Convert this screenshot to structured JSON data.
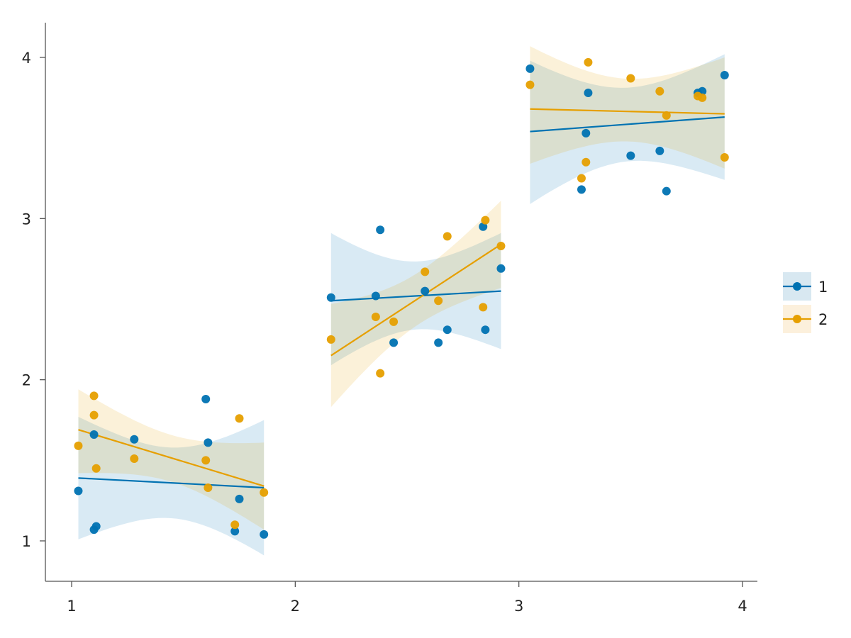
{
  "chart_data": {
    "type": "scatter",
    "title": "",
    "xlabel": "",
    "ylabel": "",
    "xlim": [
      0.88,
      4.07
    ],
    "ylim": [
      0.75,
      4.22
    ],
    "x_ticks": [
      1,
      2,
      3,
      4
    ],
    "x_tick_labels": [
      "1",
      "2",
      "3",
      "4"
    ],
    "y_ticks": [
      1,
      2,
      3,
      4
    ],
    "y_tick_labels": [
      "1",
      "2",
      "3",
      "4"
    ],
    "grid": false,
    "legend": {
      "placement": "right",
      "entries": [
        "1",
        "2"
      ]
    },
    "series": [
      {
        "name": "1",
        "color": "#0072B2",
        "band_color": "#d8e8f1",
        "points": [
          [
            1.03,
            1.31
          ],
          [
            1.1,
            1.07
          ],
          [
            1.11,
            1.09
          ],
          [
            1.1,
            1.66
          ],
          [
            1.28,
            1.63
          ],
          [
            1.6,
            1.88
          ],
          [
            1.61,
            1.61
          ],
          [
            1.73,
            1.06
          ],
          [
            1.75,
            1.26
          ],
          [
            1.86,
            1.04
          ],
          [
            2.16,
            2.51
          ],
          [
            2.36,
            2.52
          ],
          [
            2.38,
            2.93
          ],
          [
            2.44,
            2.23
          ],
          [
            2.58,
            2.55
          ],
          [
            2.64,
            2.23
          ],
          [
            2.68,
            2.31
          ],
          [
            2.84,
            2.95
          ],
          [
            2.85,
            2.31
          ],
          [
            2.92,
            2.69
          ],
          [
            3.05,
            3.93
          ],
          [
            3.28,
            3.18
          ],
          [
            3.3,
            3.53
          ],
          [
            3.31,
            3.78
          ],
          [
            3.5,
            3.39
          ],
          [
            3.63,
            3.42
          ],
          [
            3.66,
            3.17
          ],
          [
            3.8,
            3.78
          ],
          [
            3.82,
            3.79
          ],
          [
            3.92,
            3.89
          ]
        ],
        "fits": [
          {
            "x": [
              1.03,
              1.86
            ],
            "y": [
              1.39,
              1.33
            ],
            "lower": [
              1.01,
              0.91
            ],
            "upper": [
              1.77,
              1.75
            ]
          },
          {
            "x": [
              2.16,
              2.92
            ],
            "y": [
              2.49,
              2.55
            ],
            "lower": [
              2.09,
              2.19
            ],
            "upper": [
              2.91,
              2.91
            ]
          },
          {
            "x": [
              3.05,
              3.92
            ],
            "y": [
              3.54,
              3.63
            ],
            "lower": [
              3.09,
              3.24
            ],
            "upper": [
              3.98,
              4.02
            ]
          }
        ]
      },
      {
        "name": "2",
        "color": "#E69F00",
        "band_color": "#fcf0dc",
        "points": [
          [
            1.03,
            1.59
          ],
          [
            1.1,
            1.9
          ],
          [
            1.1,
            1.78
          ],
          [
            1.11,
            1.45
          ],
          [
            1.28,
            1.51
          ],
          [
            1.6,
            1.5
          ],
          [
            1.61,
            1.33
          ],
          [
            1.73,
            1.1
          ],
          [
            1.75,
            1.76
          ],
          [
            1.86,
            1.3
          ],
          [
            2.16,
            2.25
          ],
          [
            2.36,
            2.39
          ],
          [
            2.38,
            2.04
          ],
          [
            2.44,
            2.36
          ],
          [
            2.58,
            2.67
          ],
          [
            2.64,
            2.49
          ],
          [
            2.68,
            2.89
          ],
          [
            2.84,
            2.45
          ],
          [
            2.85,
            2.99
          ],
          [
            2.92,
            2.83
          ],
          [
            3.05,
            3.83
          ],
          [
            3.28,
            3.25
          ],
          [
            3.3,
            3.35
          ],
          [
            3.31,
            3.97
          ],
          [
            3.5,
            3.87
          ],
          [
            3.63,
            3.79
          ],
          [
            3.66,
            3.64
          ],
          [
            3.8,
            3.76
          ],
          [
            3.82,
            3.75
          ],
          [
            3.92,
            3.38
          ]
        ],
        "fits": [
          {
            "x": [
              1.03,
              1.86
            ],
            "y": [
              1.69,
              1.34
            ],
            "lower": [
              1.42,
              1.07
            ],
            "upper": [
              1.94,
              1.61
            ]
          },
          {
            "x": [
              2.16,
              2.92
            ],
            "y": [
              2.15,
              2.84
            ],
            "lower": [
              1.83,
              2.57
            ],
            "upper": [
              2.47,
              3.11
            ]
          },
          {
            "x": [
              3.05,
              3.92
            ],
            "y": [
              3.68,
              3.65
            ],
            "lower": [
              3.34,
              3.31
            ],
            "upper": [
              4.07,
              4.0
            ]
          }
        ]
      }
    ]
  }
}
